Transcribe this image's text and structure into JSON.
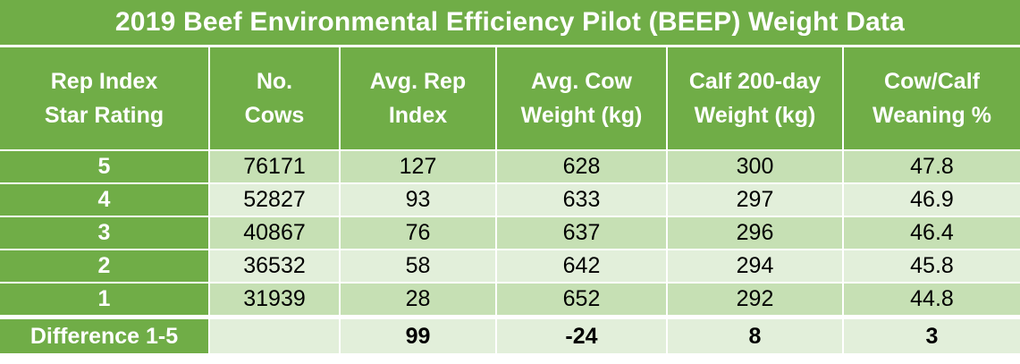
{
  "title": "2019 Beef Environmental Efficiency Pilot (BEEP) Weight Data",
  "headers": [
    [
      "Rep Index",
      "Star Rating"
    ],
    [
      "No.",
      "Cows"
    ],
    [
      "Avg. Rep",
      "Index"
    ],
    [
      "Avg. Cow",
      "Weight (kg)"
    ],
    [
      "Calf 200-day",
      "Weight (kg)"
    ],
    [
      "Cow/Calf",
      "Weaning %"
    ]
  ],
  "rows": [
    {
      "rating": "5",
      "cows": "76171",
      "rep_index": "127",
      "cow_weight": "628",
      "calf_weight": "300",
      "weaning": "47.8"
    },
    {
      "rating": "4",
      "cows": "52827",
      "rep_index": "93",
      "cow_weight": "633",
      "calf_weight": "297",
      "weaning": "46.9"
    },
    {
      "rating": "3",
      "cows": "40867",
      "rep_index": "76",
      "cow_weight": "637",
      "calf_weight": "296",
      "weaning": "46.4"
    },
    {
      "rating": "2",
      "cows": "36532",
      "rep_index": "58",
      "cow_weight": "642",
      "calf_weight": "294",
      "weaning": "45.8"
    },
    {
      "rating": "1",
      "cows": "31939",
      "rep_index": "28",
      "cow_weight": "652",
      "calf_weight": "292",
      "weaning": "44.8"
    }
  ],
  "difference": {
    "label": "Difference 1-5",
    "cows": "",
    "rep_index": "99",
    "cow_weight": "-24",
    "calf_weight": "8",
    "weaning": "3"
  },
  "colors": {
    "header_green": "#70ad47",
    "row_dark": "#c6e0b4",
    "row_light": "#e2efda"
  }
}
